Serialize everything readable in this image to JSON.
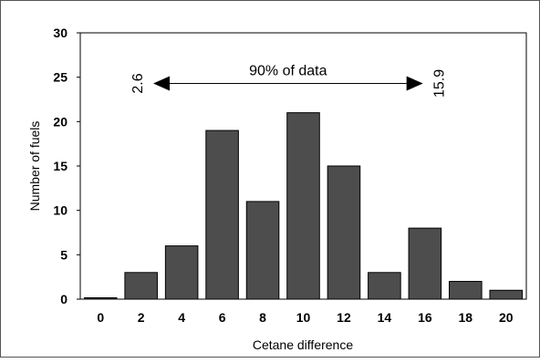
{
  "chart_data": {
    "type": "bar",
    "title": "",
    "xlabel": "Cetane difference",
    "ylabel": "Number of fuels",
    "categories": [
      "0",
      "2",
      "4",
      "6",
      "8",
      "10",
      "12",
      "14",
      "16",
      "18",
      "20"
    ],
    "values": [
      0,
      3,
      6,
      19,
      11,
      21,
      15,
      3,
      8,
      2,
      1
    ],
    "ylim": [
      0,
      30
    ],
    "yticks": [
      "0",
      "5",
      "10",
      "15",
      "20",
      "25",
      "30"
    ],
    "grid": false,
    "legend": "none",
    "bar_color": "#4d4d4d",
    "annotation": {
      "text": "90% of data",
      "left_value_label": "2.6",
      "right_value_label": "15.9",
      "left_x": 2.6,
      "right_x": 15.9,
      "y": 24.3
    }
  }
}
